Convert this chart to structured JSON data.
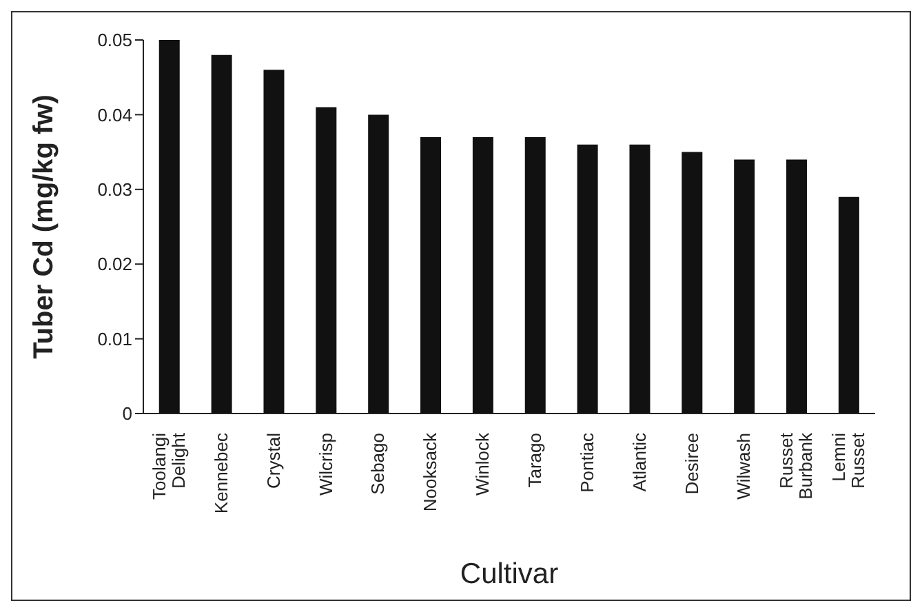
{
  "chart_data": {
    "type": "bar",
    "xlabel": "Cultivar",
    "ylabel": "Tuber Cd (mg/kg fw)",
    "categories": [
      "Toolangi Delight",
      "Kennebec",
      "Crystal",
      "Wilcrisp",
      "Sebago",
      "Nooksack",
      "Winlock",
      "Tarago",
      "Pontiac",
      "Atlantic",
      "Desiree",
      "Wilwash",
      "Russet Burbank",
      "Lemni Russet"
    ],
    "values": [
      0.05,
      0.048,
      0.046,
      0.041,
      0.04,
      0.037,
      0.037,
      0.037,
      0.036,
      0.036,
      0.035,
      0.034,
      0.034,
      0.029
    ],
    "color": "#111111",
    "ylim": [
      0,
      0.05
    ],
    "yticks": [
      0,
      0.01,
      0.02,
      0.03,
      0.04,
      0.05
    ],
    "grid": false,
    "legend": false
  }
}
